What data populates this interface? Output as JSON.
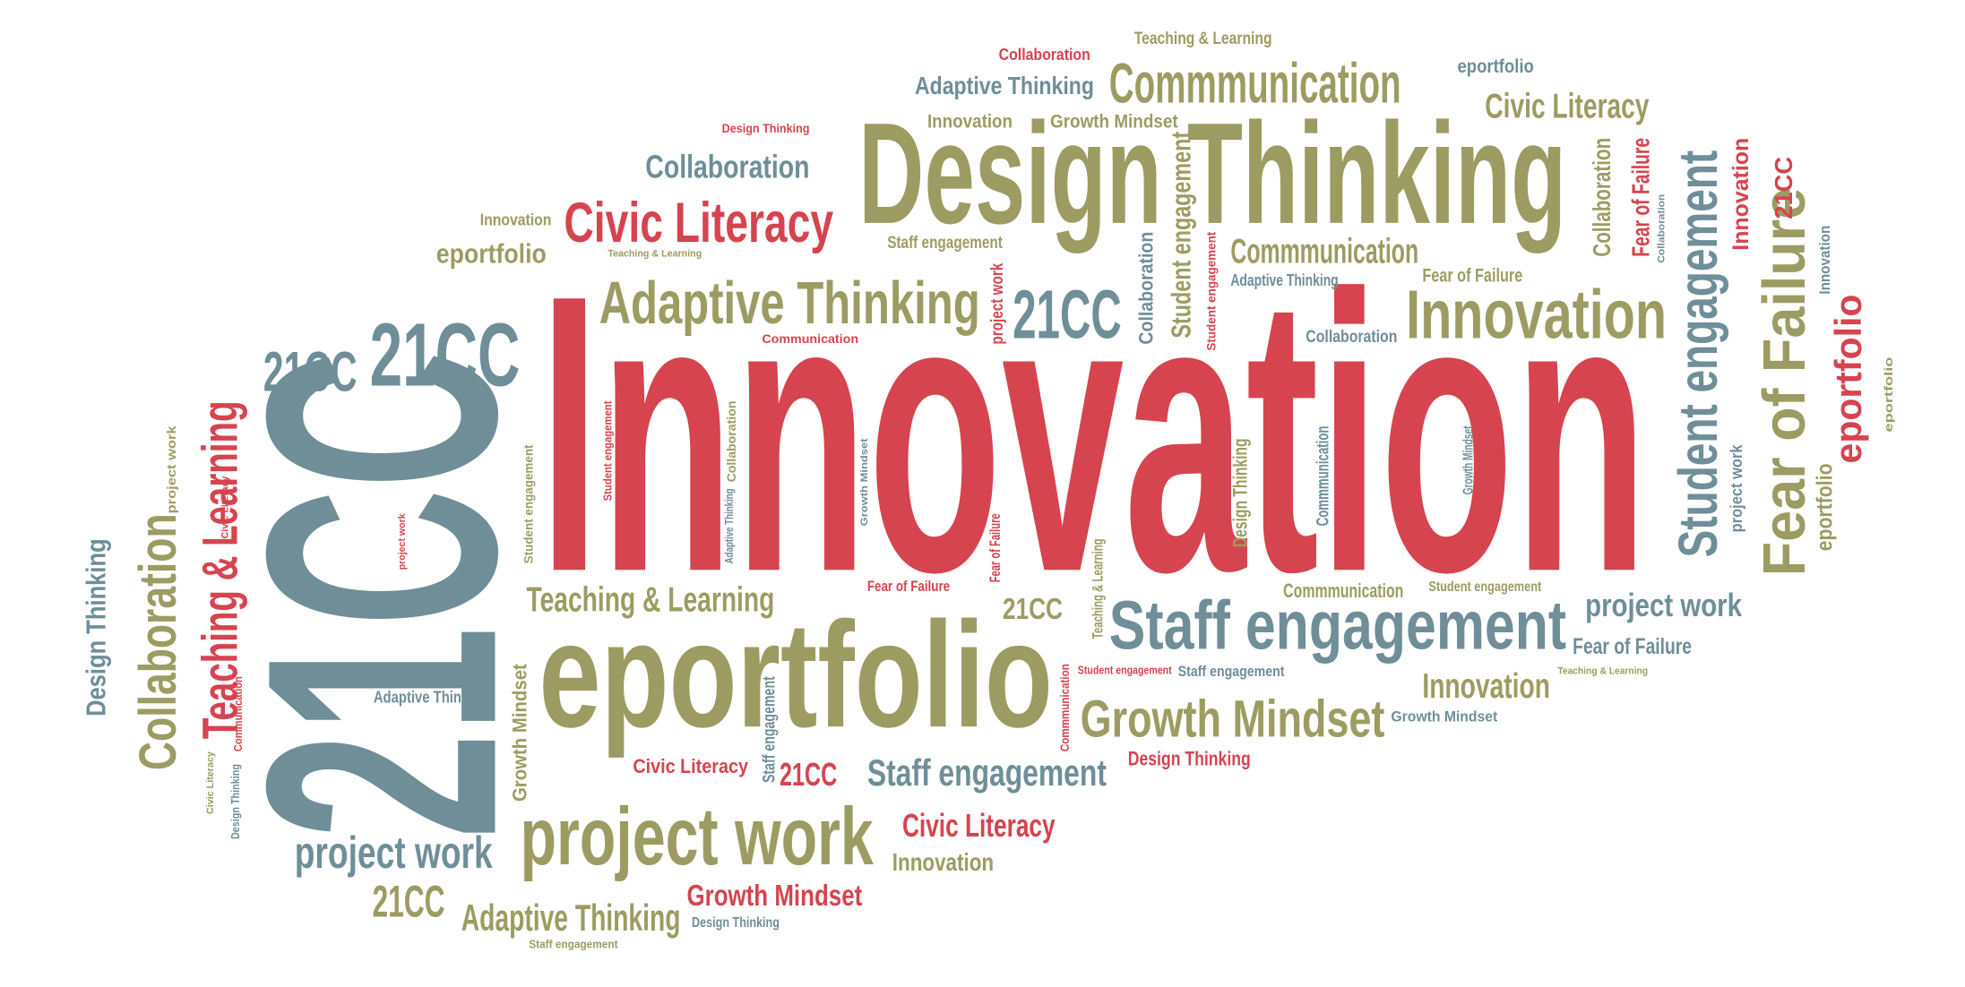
{
  "words": [
    {
      "text": "Innovation",
      "color": "#d5444f"
    },
    {
      "text": "Design Thinking",
      "color": "#9c9c62"
    },
    {
      "text": "eportfolio",
      "color": "#9c9c62"
    },
    {
      "text": "Commmunication",
      "color": "#9c9c62"
    },
    {
      "text": "Civic Literacy",
      "color": "#d5444f"
    },
    {
      "text": "Collaboration",
      "color": "#6f8e98"
    },
    {
      "text": "Adaptive Thinking",
      "color": "#9c9c62"
    },
    {
      "text": "21CC",
      "color": "#6f8e98"
    },
    {
      "text": "Innovation",
      "color": "#9c9c62"
    },
    {
      "text": "21CC",
      "color": "#6f8e98"
    },
    {
      "text": "21CC",
      "color": "#6f8e98"
    },
    {
      "text": "Staff engagement",
      "color": "#6f8e98"
    },
    {
      "text": "project work",
      "color": "#9c9c62"
    },
    {
      "text": "Growth Mindset",
      "color": "#9c9c62"
    },
    {
      "text": "Teaching & Learning",
      "color": "#9c9c62"
    },
    {
      "text": "Innovation",
      "color": "#9c9c62"
    },
    {
      "text": "project work",
      "color": "#6f8e98"
    },
    {
      "text": "Staff engagement",
      "color": "#6f8e98"
    },
    {
      "text": "Civic Literacy",
      "color": "#d5444f"
    },
    {
      "text": "Innovation",
      "color": "#9c9c62"
    },
    {
      "text": "Growth Mindset",
      "color": "#d5444f"
    },
    {
      "text": "Adaptive Thinking",
      "color": "#9c9c62"
    },
    {
      "text": "21CC",
      "color": "#9c9c62"
    },
    {
      "text": "project work",
      "color": "#6f8e98"
    },
    {
      "text": "Civic Literacy",
      "color": "#d5444f"
    },
    {
      "text": "21CC",
      "color": "#d5444f"
    },
    {
      "text": "21CC",
      "color": "#9c9c62"
    },
    {
      "text": "Fear of Failure",
      "color": "#d5444f"
    },
    {
      "text": "Commmunication",
      "color": "#9c9c62"
    },
    {
      "text": "Student engagement",
      "color": "#9c9c62"
    },
    {
      "text": "Fear of Failure",
      "color": "#6f8e98"
    },
    {
      "text": "Design Thinking",
      "color": "#d5444f"
    },
    {
      "text": "Growth Mindset",
      "color": "#6f8e98"
    },
    {
      "text": "Adaptive Thinking",
      "color": "#6f8e98"
    },
    {
      "text": "Civic Literacy",
      "color": "#9c9c62"
    },
    {
      "text": "eportfolio",
      "color": "#6f8e98"
    },
    {
      "text": "Teaching & Learning",
      "color": "#9c9c62"
    },
    {
      "text": "Collaboration",
      "color": "#d5444f"
    },
    {
      "text": "Adaptive Thinking",
      "color": "#6f8e98"
    },
    {
      "text": "Innovation",
      "color": "#9c9c62"
    },
    {
      "text": "Growth Mindset",
      "color": "#9c9c62"
    },
    {
      "text": "Design Thinking",
      "color": "#d5444f"
    },
    {
      "text": "Innovation",
      "color": "#9c9c62"
    },
    {
      "text": "eportfolio",
      "color": "#9c9c62"
    },
    {
      "text": "Teaching & Learning",
      "color": "#9c9c62"
    },
    {
      "text": "Staff engagement",
      "color": "#9c9c62"
    },
    {
      "text": "Commmunication",
      "color": "#9c9c62"
    },
    {
      "text": "Adaptive Thinking",
      "color": "#6f8e98"
    },
    {
      "text": "Fear of Failure",
      "color": "#9c9c62"
    },
    {
      "text": "Collaboration",
      "color": "#6f8e98"
    },
    {
      "text": "Communication",
      "color": "#d5444f"
    },
    {
      "text": "Staff engagement",
      "color": "#6f8e98"
    },
    {
      "text": "Student engagement",
      "color": "#d5444f"
    },
    {
      "text": "Teaching & Learning",
      "color": "#9c9c62"
    },
    {
      "text": "Design Thinking",
      "color": "#6f8e98"
    },
    {
      "text": "Staff engagement",
      "color": "#9c9c62"
    },
    {
      "text": "21CC",
      "color": "#6f8e98"
    },
    {
      "text": "Teaching & Learning",
      "color": "#d5444f"
    },
    {
      "text": "Collaboration",
      "color": "#9c9c62"
    },
    {
      "text": "Design Thinking",
      "color": "#6f8e98"
    },
    {
      "text": "project work",
      "color": "#9c9c62"
    },
    {
      "text": "Civic Literacy",
      "color": "#d5444f"
    },
    {
      "text": "Communication",
      "color": "#d5444f"
    },
    {
      "text": "Civic Literacy",
      "color": "#9c9c62"
    },
    {
      "text": "Design Thinking",
      "color": "#6f8e98"
    },
    {
      "text": "Growth Mindset",
      "color": "#9c9c62"
    },
    {
      "text": "Staff engagement",
      "color": "#6f8e98"
    },
    {
      "text": "Student engagement",
      "color": "#9c9c62"
    },
    {
      "text": "Design Thinking",
      "color": "#9c9c62"
    },
    {
      "text": "Fear of Failure",
      "color": "#d5444f"
    },
    {
      "text": "Teaching & Learning",
      "color": "#9c9c62"
    },
    {
      "text": "Collaboration",
      "color": "#9c9c62"
    },
    {
      "text": "Adaptive Thinking",
      "color": "#6f8e98"
    },
    {
      "text": "Commmunication",
      "color": "#6f8e98"
    },
    {
      "text": "Growth Mindset",
      "color": "#6f8e98"
    },
    {
      "text": "Collaboration",
      "color": "#6f8e98"
    },
    {
      "text": "Student engagement",
      "color": "#9c9c62"
    },
    {
      "text": "Student engagement",
      "color": "#d5444f"
    },
    {
      "text": "project work",
      "color": "#d5444f"
    },
    {
      "text": "Student engagement",
      "color": "#6f8e98"
    },
    {
      "text": "Fear of Failure",
      "color": "#9c9c62"
    },
    {
      "text": "Innovation",
      "color": "#d5444f"
    },
    {
      "text": "21CC",
      "color": "#d5444f"
    },
    {
      "text": "eportfolio",
      "color": "#d5444f"
    },
    {
      "text": "eportfolio",
      "color": "#9c9c62"
    },
    {
      "text": "Innovation",
      "color": "#6f8e98"
    },
    {
      "text": "project work",
      "color": "#6f8e98"
    },
    {
      "text": "Collaboration",
      "color": "#9c9c62"
    },
    {
      "text": "Fear of Failure",
      "color": "#d5444f"
    },
    {
      "text": "Collaboration",
      "color": "#6f8e98"
    },
    {
      "text": "eportfolio",
      "color": "#9c9c62"
    },
    {
      "text": "Commmunication",
      "color": "#d5444f"
    },
    {
      "text": "project work",
      "color": "#d5444f"
    },
    {
      "text": "Student engagement",
      "color": "#d5444f"
    },
    {
      "text": "Growth Mindset",
      "color": "#6f8e98"
    }
  ]
}
